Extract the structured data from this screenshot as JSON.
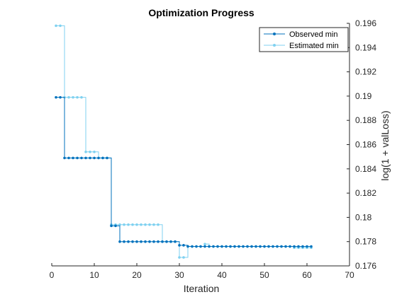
{
  "chart_data": {
    "type": "line",
    "title": "Optimization Progress",
    "xlabel": "Iteration",
    "ylabel": "log(1 + valLoss)",
    "xlim": [
      0,
      70
    ],
    "ylim": [
      0.176,
      0.196
    ],
    "x_ticks": [
      "0",
      "10",
      "20",
      "30",
      "40",
      "50",
      "60",
      "70"
    ],
    "y_ticks": [
      "0.176",
      "0.178",
      "0.18",
      "0.182",
      "0.184",
      "0.186",
      "0.188",
      "0.19",
      "0.192",
      "0.194",
      "0.196"
    ],
    "y_axis_side": "right",
    "grid": false,
    "legend_position": "top-right",
    "series": [
      {
        "name": "Observed min",
        "color": "#0072BD",
        "marker": "dot",
        "x": [
          1,
          2,
          3,
          4,
          5,
          6,
          7,
          8,
          9,
          10,
          11,
          12,
          13,
          14,
          15,
          16,
          17,
          18,
          19,
          20,
          21,
          22,
          23,
          24,
          25,
          26,
          27,
          28,
          29,
          30,
          31,
          32,
          33,
          34,
          35,
          36,
          37,
          38,
          39,
          40,
          41,
          42,
          43,
          44,
          45,
          46,
          47,
          48,
          49,
          50,
          51,
          52,
          53,
          54,
          55,
          56,
          57,
          58,
          59,
          60,
          61
        ],
        "y": [
          0.1899,
          0.1899,
          0.1849,
          0.1849,
          0.1849,
          0.1849,
          0.1849,
          0.1849,
          0.1849,
          0.1849,
          0.1849,
          0.1849,
          0.1849,
          0.1793,
          0.1793,
          0.178,
          0.178,
          0.178,
          0.178,
          0.178,
          0.178,
          0.178,
          0.178,
          0.178,
          0.178,
          0.178,
          0.178,
          0.178,
          0.178,
          0.1777,
          0.1777,
          0.1776,
          0.1776,
          0.1776,
          0.1776,
          0.1776,
          0.1776,
          0.1776,
          0.1776,
          0.1776,
          0.1776,
          0.1776,
          0.1776,
          0.1776,
          0.1776,
          0.1776,
          0.1776,
          0.1776,
          0.1776,
          0.1776,
          0.1776,
          0.1776,
          0.1776,
          0.1776,
          0.1776,
          0.1776,
          0.1776,
          0.1776,
          0.1776,
          0.1776,
          0.1776
        ]
      },
      {
        "name": "Estimated min",
        "color": "#7FD1F0",
        "marker": "dot",
        "x": [
          1,
          2,
          3,
          4,
          5,
          6,
          7,
          8,
          9,
          10,
          11,
          12,
          13,
          14,
          15,
          16,
          17,
          18,
          19,
          20,
          21,
          22,
          23,
          24,
          25,
          26,
          27,
          28,
          29,
          30,
          31,
          32,
          33,
          34,
          35,
          36,
          37,
          38,
          39,
          40,
          41,
          42,
          43,
          44,
          45,
          46,
          47,
          48,
          49,
          50,
          51,
          52,
          53,
          54,
          55,
          56,
          57,
          58,
          59,
          60,
          61
        ],
        "y": [
          0.1958,
          0.1958,
          0.1899,
          0.1899,
          0.1899,
          0.1899,
          0.1899,
          0.1854,
          0.1854,
          0.1854,
          0.1849,
          0.1849,
          0.1849,
          0.1794,
          0.1794,
          0.1794,
          0.1794,
          0.1794,
          0.1794,
          0.1794,
          0.1794,
          0.1794,
          0.1794,
          0.1794,
          0.1794,
          0.178,
          0.178,
          0.178,
          0.178,
          0.1767,
          0.1767,
          0.1776,
          0.1776,
          0.1776,
          0.1776,
          0.1778,
          0.1776,
          0.1776,
          0.1776,
          0.1776,
          0.1776,
          0.1776,
          0.1776,
          0.1776,
          0.1776,
          0.1776,
          0.1776,
          0.1776,
          0.1776,
          0.1776,
          0.1776,
          0.1776,
          0.1776,
          0.1776,
          0.1776,
          0.1776,
          0.1775,
          0.1775,
          0.1775,
          0.1775,
          0.1775
        ]
      }
    ]
  }
}
